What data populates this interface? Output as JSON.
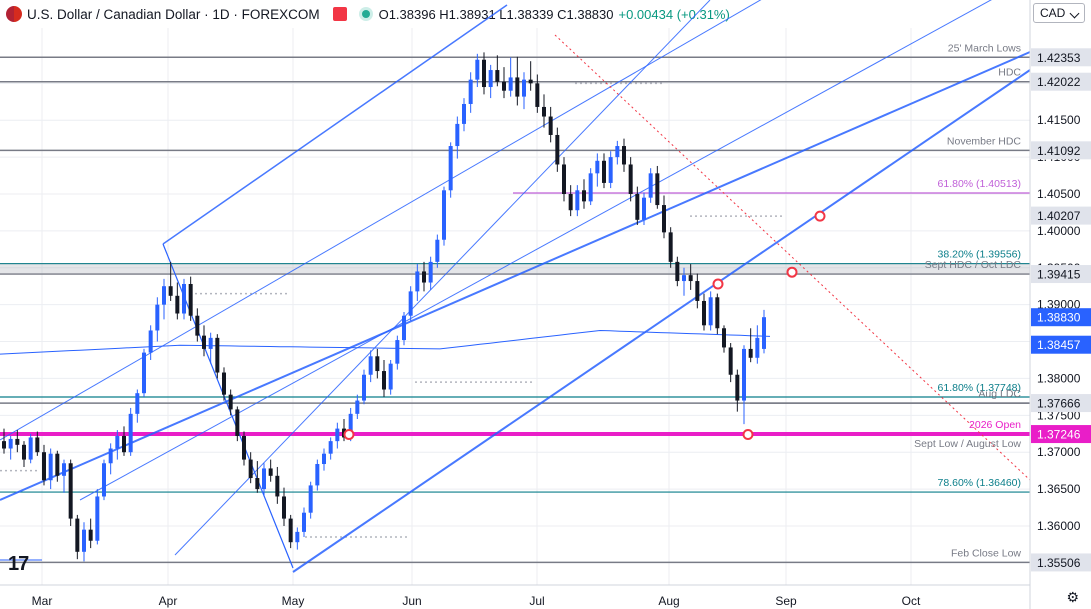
{
  "header": {
    "title": "U.S. Dollar / Canadian Dollar · 1D · FOREXCOM",
    "ohlc": "O1.38396 H1.38931 L1.38339 C1.38830",
    "change": "+0.00434 (+0.31%)",
    "currency": "CAD"
  },
  "colors": {
    "up": "#2962ff",
    "down": "#131722",
    "channel": "#2962ff",
    "ma": "#2962ff",
    "fib": "#0b7e8a",
    "gray_level": "#787b86",
    "magenta": "#e91ec8",
    "pink_dotted": "#f23645"
  },
  "chart_data": {
    "type": "candlestick",
    "x_tick_labels": [
      "Mar",
      "Apr",
      "May",
      "Jun",
      "Jul",
      "Aug",
      "Sep",
      "Oct"
    ],
    "y_tick_labels": [
      "1.36000",
      "1.36500",
      "1.37000",
      "1.37500",
      "1.38000",
      "1.38500",
      "1.39000",
      "1.39500",
      "1.40000",
      "1.40500",
      "1.41000",
      "1.41500",
      "1.42000"
    ],
    "ylim": [
      1.352,
      1.4275
    ],
    "last_price": "1.38830",
    "moving_average_value": "1.38457",
    "levels": [
      {
        "text": "25' March Lows",
        "value": 1.42353,
        "tag": "1.42353",
        "kind": "gray"
      },
      {
        "text": "HDC",
        "value": 1.42022,
        "tag": "1.42022",
        "kind": "gray"
      },
      {
        "text": "November HDC",
        "value": 1.41092,
        "tag": "1.41092",
        "kind": "gray"
      },
      {
        "text": "61.80% (1.40513)",
        "value": 1.40513,
        "tag": "",
        "kind": "magenta-thin"
      },
      {
        "text": "",
        "value": 1.40207,
        "tag": "1.40207",
        "kind": "none"
      },
      {
        "text": "38.20% (1.39556)",
        "value": 1.39556,
        "tag": "",
        "kind": "fib"
      },
      {
        "text": "Sept HDC / Oct LDC",
        "value": 1.39415,
        "tag": "1.39415",
        "kind": "gray"
      },
      {
        "text": "61.80% (1.37748)",
        "value": 1.37748,
        "tag": "",
        "kind": "fib"
      },
      {
        "text": "Aug LDC",
        "value": 1.37666,
        "tag": "1.37666",
        "kind": "gray"
      },
      {
        "text": "2026 Open",
        "value": 1.37246,
        "tag": "1.37246",
        "kind": "magenta"
      },
      {
        "text": "Sept Low / August Low",
        "value": 1.3723,
        "tag": "",
        "kind": "gray-note"
      },
      {
        "text": "78.60% (1.36460)",
        "value": 1.3646,
        "tag": "",
        "kind": "fib"
      },
      {
        "text": "Feb Close Low",
        "value": 1.35506,
        "tag": "1.35506",
        "kind": "gray"
      }
    ],
    "candles": [
      [
        1.3715,
        1.3732,
        1.3698,
        1.3705
      ],
      [
        1.3705,
        1.3722,
        1.369,
        1.3718
      ],
      [
        1.3718,
        1.373,
        1.37,
        1.371
      ],
      [
        1.371,
        1.3715,
        1.368,
        1.369
      ],
      [
        1.369,
        1.3725,
        1.3685,
        1.372
      ],
      [
        1.372,
        1.3728,
        1.3695,
        1.37
      ],
      [
        1.37,
        1.371,
        1.3655,
        1.3662
      ],
      [
        1.3662,
        1.3705,
        1.365,
        1.3698
      ],
      [
        1.3698,
        1.3702,
        1.366,
        1.3668
      ],
      [
        1.3668,
        1.369,
        1.3645,
        1.3685
      ],
      [
        1.3685,
        1.369,
        1.36,
        1.361
      ],
      [
        1.361,
        1.3615,
        1.3555,
        1.3565
      ],
      [
        1.3565,
        1.3605,
        1.3552,
        1.3595
      ],
      [
        1.3595,
        1.361,
        1.357,
        1.358
      ],
      [
        1.358,
        1.365,
        1.3575,
        1.364
      ],
      [
        1.364,
        1.369,
        1.3635,
        1.3685
      ],
      [
        1.3685,
        1.3712,
        1.367,
        1.3705
      ],
      [
        1.3705,
        1.373,
        1.369,
        1.3722
      ],
      [
        1.3722,
        1.3735,
        1.3695,
        1.37
      ],
      [
        1.37,
        1.376,
        1.3695,
        1.3752
      ],
      [
        1.3752,
        1.3785,
        1.374,
        1.378
      ],
      [
        1.378,
        1.384,
        1.3775,
        1.3835
      ],
      [
        1.3835,
        1.3872,
        1.3825,
        1.3865
      ],
      [
        1.3865,
        1.391,
        1.385,
        1.39
      ],
      [
        1.39,
        1.3935,
        1.388,
        1.3925
      ],
      [
        1.3925,
        1.3958,
        1.3905,
        1.3912
      ],
      [
        1.3912,
        1.393,
        1.388,
        1.3888
      ],
      [
        1.3888,
        1.3935,
        1.388,
        1.3928
      ],
      [
        1.3928,
        1.3938,
        1.3878,
        1.3885
      ],
      [
        1.3885,
        1.3895,
        1.385,
        1.3858
      ],
      [
        1.3858,
        1.3872,
        1.383,
        1.384
      ],
      [
        1.384,
        1.3862,
        1.382,
        1.3855
      ],
      [
        1.3855,
        1.386,
        1.38,
        1.3808
      ],
      [
        1.3808,
        1.3815,
        1.377,
        1.3778
      ],
      [
        1.3778,
        1.3785,
        1.375,
        1.3758
      ],
      [
        1.3758,
        1.3762,
        1.3715,
        1.3722
      ],
      [
        1.3722,
        1.3728,
        1.3682,
        1.369
      ],
      [
        1.369,
        1.37,
        1.3658,
        1.3665
      ],
      [
        1.3665,
        1.3688,
        1.3645,
        1.365
      ],
      [
        1.365,
        1.3685,
        1.364,
        1.3678
      ],
      [
        1.3678,
        1.369,
        1.366,
        1.3668
      ],
      [
        1.3668,
        1.368,
        1.363,
        1.364
      ],
      [
        1.364,
        1.3652,
        1.36,
        1.361
      ],
      [
        1.361,
        1.3615,
        1.357,
        1.3578
      ],
      [
        1.3578,
        1.3598,
        1.3568,
        1.3592
      ],
      [
        1.3592,
        1.3625,
        1.3585,
        1.3618
      ],
      [
        1.3618,
        1.366,
        1.361,
        1.3655
      ],
      [
        1.3655,
        1.369,
        1.3648,
        1.3684
      ],
      [
        1.3684,
        1.3705,
        1.3675,
        1.3698
      ],
      [
        1.3698,
        1.372,
        1.369,
        1.3715
      ],
      [
        1.3715,
        1.374,
        1.3705,
        1.3732
      ],
      [
        1.3732,
        1.3745,
        1.3715,
        1.372
      ],
      [
        1.372,
        1.376,
        1.3715,
        1.3752
      ],
      [
        1.3752,
        1.3778,
        1.3745,
        1.377
      ],
      [
        1.377,
        1.3812,
        1.3765,
        1.3805
      ],
      [
        1.3805,
        1.3838,
        1.3795,
        1.383
      ],
      [
        1.383,
        1.384,
        1.38,
        1.381
      ],
      [
        1.381,
        1.3825,
        1.3775,
        1.3785
      ],
      [
        1.3785,
        1.3825,
        1.3778,
        1.382
      ],
      [
        1.382,
        1.3858,
        1.3812,
        1.3852
      ],
      [
        1.3852,
        1.389,
        1.3845,
        1.3885
      ],
      [
        1.3885,
        1.3925,
        1.3878,
        1.3918
      ],
      [
        1.3918,
        1.3955,
        1.3905,
        1.3945
      ],
      [
        1.3945,
        1.3958,
        1.3918,
        1.393
      ],
      [
        1.393,
        1.3965,
        1.392,
        1.3958
      ],
      [
        1.3958,
        1.3995,
        1.395,
        1.3988
      ],
      [
        1.3988,
        1.406,
        1.398,
        1.4055
      ],
      [
        1.4055,
        1.412,
        1.4045,
        1.4115
      ],
      [
        1.4115,
        1.4155,
        1.4098,
        1.4145
      ],
      [
        1.4145,
        1.418,
        1.4135,
        1.4172
      ],
      [
        1.4172,
        1.4215,
        1.416,
        1.4205
      ],
      [
        1.4205,
        1.424,
        1.4195,
        1.4232
      ],
      [
        1.4232,
        1.4242,
        1.4185,
        1.4195
      ],
      [
        1.4195,
        1.4225,
        1.418,
        1.4218
      ],
      [
        1.4218,
        1.4238,
        1.4196,
        1.4202
      ],
      [
        1.4202,
        1.4222,
        1.418,
        1.419
      ],
      [
        1.419,
        1.4235,
        1.4182,
        1.4208
      ],
      [
        1.4208,
        1.4236,
        1.417,
        1.4182
      ],
      [
        1.4182,
        1.4215,
        1.4165,
        1.4205
      ],
      [
        1.4205,
        1.423,
        1.419,
        1.42
      ],
      [
        1.42,
        1.4212,
        1.416,
        1.4168
      ],
      [
        1.4168,
        1.4185,
        1.414,
        1.4155
      ],
      [
        1.4155,
        1.4168,
        1.412,
        1.413
      ],
      [
        1.413,
        1.414,
        1.408,
        1.409
      ],
      [
        1.409,
        1.41,
        1.404,
        1.405
      ],
      [
        1.405,
        1.4062,
        1.402,
        1.4028
      ],
      [
        1.4028,
        1.4062,
        1.402,
        1.4055
      ],
      [
        1.4055,
        1.407,
        1.403,
        1.404
      ],
      [
        1.404,
        1.4085,
        1.4035,
        1.4078
      ],
      [
        1.4078,
        1.4105,
        1.406,
        1.4095
      ],
      [
        1.4095,
        1.4105,
        1.4058,
        1.4065
      ],
      [
        1.4065,
        1.4108,
        1.4058,
        1.41
      ],
      [
        1.41,
        1.4122,
        1.409,
        1.4115
      ],
      [
        1.4115,
        1.4125,
        1.408,
        1.409
      ],
      [
        1.409,
        1.41,
        1.404,
        1.405
      ],
      [
        1.405,
        1.406,
        1.4008,
        1.4015
      ],
      [
        1.4015,
        1.4052,
        1.4008,
        1.4045
      ],
      [
        1.4045,
        1.4085,
        1.4038,
        1.4078
      ],
      [
        1.4078,
        1.4088,
        1.403,
        1.4035
      ],
      [
        1.4035,
        1.4048,
        1.399,
        1.3998
      ],
      [
        1.3998,
        1.4005,
        1.395,
        1.3958
      ],
      [
        1.3958,
        1.3965,
        1.3925,
        1.3932
      ],
      [
        1.3932,
        1.395,
        1.3912,
        1.394
      ],
      [
        1.394,
        1.3955,
        1.392,
        1.3932
      ],
      [
        1.3932,
        1.3942,
        1.3895,
        1.3905
      ],
      [
        1.3905,
        1.3915,
        1.3865,
        1.3872
      ],
      [
        1.3872,
        1.3918,
        1.3865,
        1.391
      ],
      [
        1.391,
        1.3915,
        1.386,
        1.3868
      ],
      [
        1.3868,
        1.3872,
        1.3835,
        1.3842
      ],
      [
        1.3842,
        1.3848,
        1.3795,
        1.3805
      ],
      [
        1.3805,
        1.3812,
        1.3755,
        1.377
      ],
      [
        1.377,
        1.3845,
        1.3738,
        1.384
      ],
      [
        1.384,
        1.3868,
        1.3822,
        1.3828
      ],
      [
        1.3828,
        1.3872,
        1.382,
        1.3855
      ],
      [
        1.384,
        1.3893,
        1.3834,
        1.3883
      ]
    ]
  }
}
